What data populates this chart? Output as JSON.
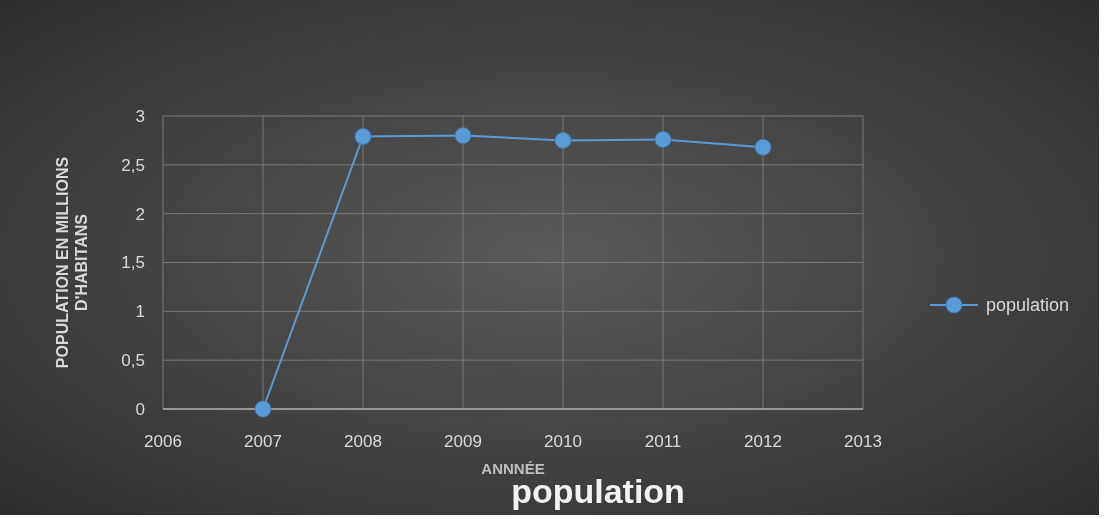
{
  "chart_data": {
    "type": "line",
    "title": "population",
    "xlabel": "ANNNÉE",
    "ylabel": "POPULATION EN MILLIONS D'HABITANS",
    "x": [
      2007,
      2008,
      2009,
      2010,
      2011,
      2012
    ],
    "series": [
      {
        "name": "population",
        "color": "#5b9bd5",
        "values": [
          0,
          2.79,
          2.8,
          2.75,
          2.76,
          2.68
        ]
      }
    ],
    "xlim": [
      2006,
      2013
    ],
    "xticks": [
      2006,
      2007,
      2008,
      2009,
      2010,
      2011,
      2012,
      2013
    ],
    "ylim": [
      0,
      3
    ],
    "yticks": [
      0,
      {
        "value": 0.5,
        "label": "0,5"
      },
      1,
      {
        "value": 1.5,
        "label": "1,5"
      },
      2,
      {
        "value": 2.5,
        "label": "2,5"
      },
      3
    ],
    "grid": true,
    "legend": "right",
    "marker": "circle",
    "line_style": "solid"
  }
}
